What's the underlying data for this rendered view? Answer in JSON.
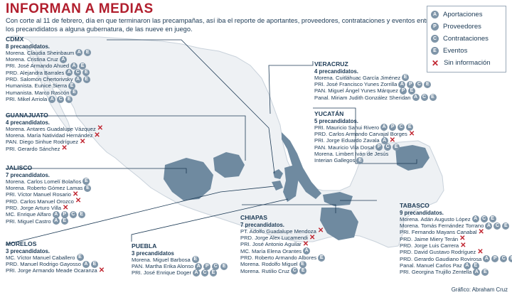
{
  "title": "INFORMAN A MEDIAS",
  "intro": "Con corte al 11 de febrero, día en que terminaron las precampañas, así iba el reporte de aportantes, proveedores, contrataciones y eventos entre los precandidatos a alguna gubernatura, de las nueve en juego.",
  "legend": [
    {
      "icon": "A",
      "type": "aportaciones",
      "label": "Aportaciones"
    },
    {
      "icon": "P",
      "type": "proveedores",
      "label": "Proveedores"
    },
    {
      "icon": "C",
      "type": "contrataciones",
      "label": "Contrataciones"
    },
    {
      "icon": "E",
      "type": "eventos",
      "label": "Eventos"
    },
    {
      "icon": "x",
      "type": "sin-informacion",
      "label": "Sin información"
    }
  ],
  "colors": {
    "title": "#b11e2d",
    "state_fill": "#6f8aa0",
    "map_fill": "#eef1f4",
    "icon": "#7f95a8",
    "missing": "#c0242f"
  },
  "states": [
    {
      "id": "cdmx",
      "name": "CDMX",
      "sub": "8 precandidatos.",
      "candidates": [
        {
          "text": "Morena. Claudia Sheinbaum",
          "icons": [
            "A",
            "E"
          ]
        },
        {
          "text": "Morena. Cristina Cruz",
          "icons": [
            "A"
          ]
        },
        {
          "text": "PRI. José Armando Ahued",
          "icons": [
            "A",
            "E"
          ]
        },
        {
          "text": "PRD. Alejandra Barrales",
          "icons": [
            "A",
            "C",
            "E"
          ]
        },
        {
          "text": "PRD. Salomón Chertorivsky",
          "icons": [
            "A",
            "E"
          ]
        },
        {
          "text": "Humanista. Eunice Sierra",
          "icons": [
            "E"
          ]
        },
        {
          "text": "Humanista. Marco Rascón",
          "icons": [
            "E"
          ]
        },
        {
          "text": "PRI. Mikel Arriola",
          "icons": [
            "A",
            "C",
            "E"
          ]
        }
      ]
    },
    {
      "id": "guanajuato",
      "name": "GUANAJUATO",
      "sub": "4 precandidatos.",
      "candidates": [
        {
          "text": "Morena. Antares Guadalupe Vázquez",
          "icons": [
            "x"
          ]
        },
        {
          "text": "Morena. María Natividad Hernández",
          "icons": [
            "x"
          ]
        },
        {
          "text": "PAN. Diego Sinhue Rodríguez",
          "icons": [
            "x"
          ]
        },
        {
          "text": "PRI. Gerardo Sánchez",
          "icons": [
            "x"
          ]
        }
      ]
    },
    {
      "id": "jalisco",
      "name": "JALISCO",
      "sub": "7 precandidatos.",
      "candidates": [
        {
          "text": "Morena. Carlos Lomelí Bolaños",
          "icons": [
            "E"
          ]
        },
        {
          "text": "Morena. Roberto Gómez Lamas",
          "icons": [
            "E"
          ]
        },
        {
          "text": "PRI. Víctor Manuel Rosario",
          "icons": [
            "x"
          ]
        },
        {
          "text": "PRD. Carlos Manuel Orozco",
          "icons": [
            "x"
          ]
        },
        {
          "text": "PRD. Jorge Arturo Villa",
          "icons": [
            "x"
          ]
        },
        {
          "text": "MC. Enrique Alfaro",
          "icons": [
            "A",
            "P",
            "C",
            "E"
          ]
        },
        {
          "text": "PRI. Miguel Castro",
          "icons": [
            "A",
            "E"
          ]
        }
      ]
    },
    {
      "id": "morelos",
      "name": "MORELOS",
      "sub": "3 precandidatos.",
      "candidates": [
        {
          "text": "MC. Víctor Manuel Caballero",
          "icons": [
            "E"
          ]
        },
        {
          "text": "PRD. Manuel Rodrigo Gayosso",
          "icons": [
            "A",
            "E"
          ]
        },
        {
          "text": "PRI. Jorge Armando Meade Ocaranza",
          "icons": [
            "x"
          ]
        }
      ]
    },
    {
      "id": "puebla",
      "name": "PUEBLA",
      "sub": "3 precandidatos",
      "candidates": [
        {
          "text": "Morena. Miguel Barbosa",
          "icons": [
            "E"
          ]
        },
        {
          "text": "PAN. Martha Erika Alonso",
          "icons": [
            "A",
            "P",
            "C",
            "E"
          ]
        },
        {
          "text": "PRI. José Enrique Doger",
          "icons": [
            "A",
            "C",
            "E"
          ]
        }
      ]
    },
    {
      "id": "chiapas",
      "name": "CHIAPAS",
      "sub": "7 precandidatos.",
      "candidates": [
        {
          "text": "PT. Adolfo Guadalupe Mendoza",
          "icons": [
            "x"
          ]
        },
        {
          "text": "PRD. Jorge Alex Lucamendi",
          "icons": [
            "x"
          ]
        },
        {
          "text": "PRI. José Antonio Aguilar",
          "icons": [
            "x"
          ]
        },
        {
          "text": "MC. María Elena Orantes",
          "icons": [
            "A"
          ]
        },
        {
          "text": "PRD. Roberto Armando Albores",
          "icons": [
            "E"
          ]
        },
        {
          "text": "Morena. Rodolfo Miguel",
          "icons": [
            "E"
          ]
        },
        {
          "text": "Morena. Rutilio Cruz",
          "icons": [
            "C",
            "E"
          ]
        }
      ]
    },
    {
      "id": "veracruz",
      "name": "VERACRUZ",
      "sub": "4 precandidatos.",
      "candidates": [
        {
          "text": "Morena. Cuitláhuac García Jiménez",
          "icons": [
            "E"
          ]
        },
        {
          "text": "PRI. José Francisco Yunes Zorrilla",
          "icons": [
            "A",
            "P",
            "C",
            "E"
          ]
        },
        {
          "text": "PAN. Miguel Ángel Yunes Márquez",
          "icons": [
            "P",
            "E"
          ]
        },
        {
          "text": "Panal. Miriam Judith González Sheridan",
          "icons": [
            "A",
            "C",
            "E"
          ]
        }
      ]
    },
    {
      "id": "yucatan",
      "name": "YUCATÁN",
      "sub": "5 precandidatos.",
      "candidates": [
        {
          "text": "PRI. Mauricio Sahui Rivero",
          "icons": [
            "A",
            "P",
            "C",
            "E"
          ]
        },
        {
          "text": "PRD. Carlos Armando Carvajal Borges",
          "icons": [
            "x"
          ]
        },
        {
          "text": "PRI. Jorge Eduardo Zavala",
          "icons": [
            "A",
            "x"
          ]
        },
        {
          "text": "PAN. Mauricio Vila Dosal",
          "icons": [
            "P",
            "C",
            "E"
          ]
        },
        {
          "text": "Morena. Limbert Iván de Jesús",
          "icons": []
        },
        {
          "text": "Interian Gallegos",
          "icons": [
            "E"
          ]
        }
      ]
    },
    {
      "id": "tabasco",
      "name": "TABASCO",
      "sub": "9 precandidatos.",
      "candidates": [
        {
          "text": "Morena. Adán Augusto López",
          "icons": [
            "A",
            "C",
            "E"
          ]
        },
        {
          "text": "Morena. Tomás Fernández Torrano",
          "icons": [
            "A",
            "C",
            "E"
          ]
        },
        {
          "text": "PRI. Fernando Mayans Canabal",
          "icons": [
            "x"
          ]
        },
        {
          "text": "PRD. Jaime Miery Terán",
          "icons": [
            "x"
          ]
        },
        {
          "text": "PRD. Jorge Luis Carrera",
          "icons": [
            "x"
          ]
        },
        {
          "text": "PRD. David Gustavo Rodríguez",
          "icons": [
            "x"
          ]
        },
        {
          "text": "PRD. Gerardo Gaudiano Rovirosa",
          "icons": [
            "A",
            "P",
            "C",
            "E"
          ]
        },
        {
          "text": "Panal. Manuel Carlos Paz",
          "icons": [
            "A",
            "E"
          ]
        },
        {
          "text": "PRI. Georgina Trujillo Zentella",
          "icons": [
            "A",
            "E"
          ]
        }
      ]
    }
  ],
  "credit": "Gráfico: Abraham Cruz"
}
